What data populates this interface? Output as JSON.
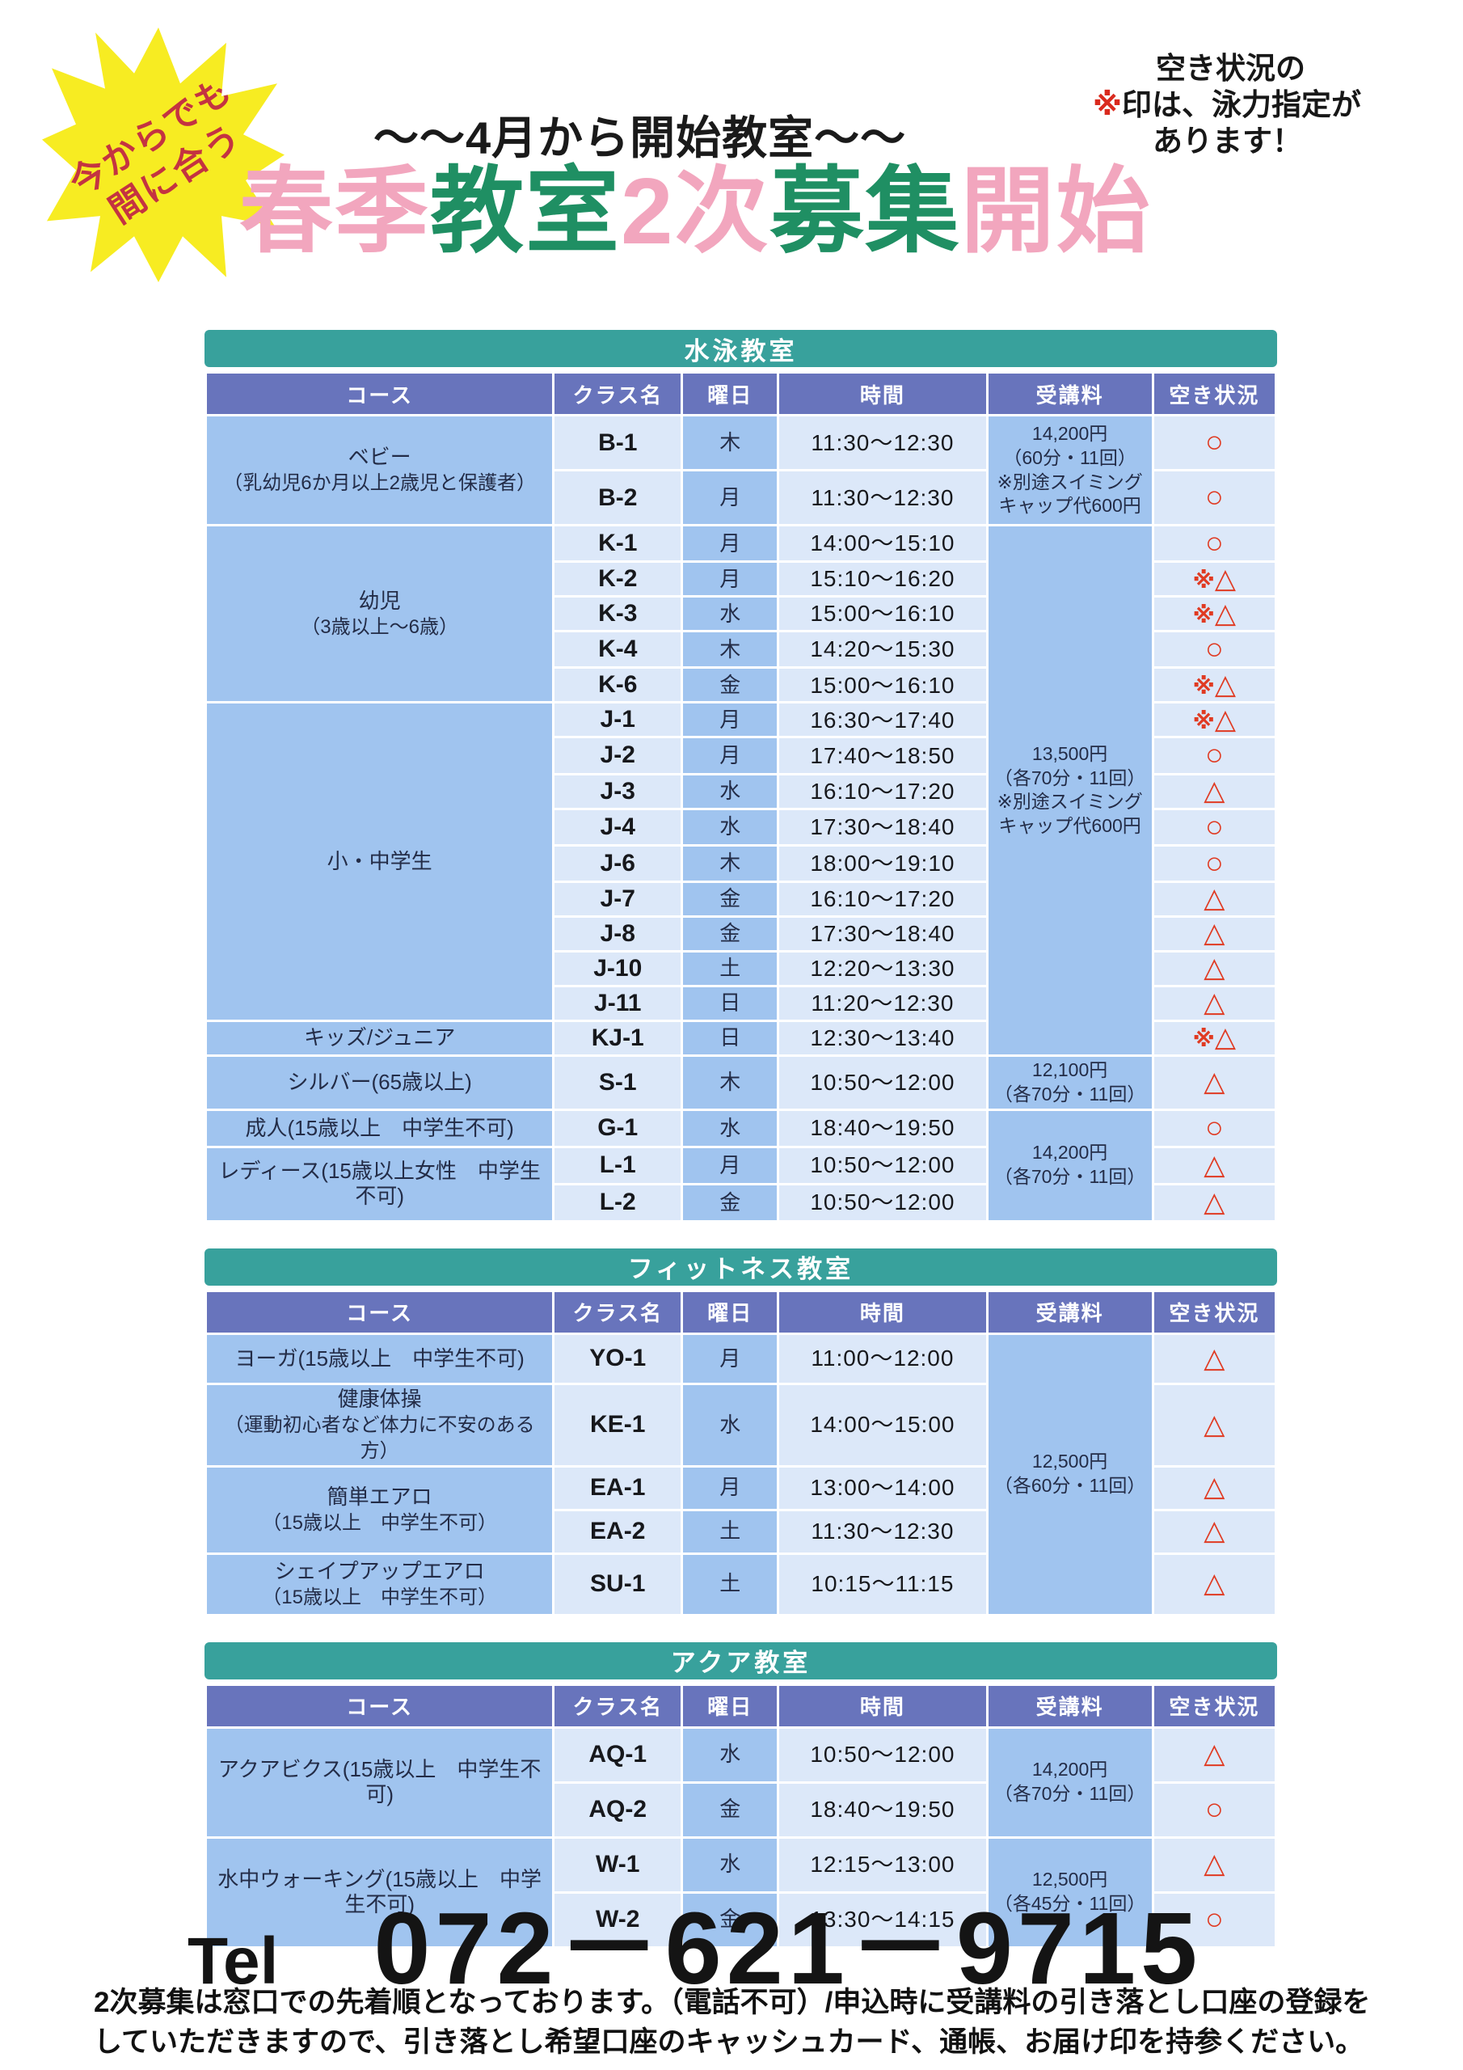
{
  "header": {
    "burst_line1": "今からでも",
    "burst_line2": "間に合う",
    "subtitle": "～～4月から開始教室～～",
    "title_segments": [
      {
        "text": "春季",
        "color": "#f2a6be"
      },
      {
        "text": "教室",
        "color": "#1f8f63"
      },
      {
        "text": "2次",
        "color": "#f2a6be"
      },
      {
        "text": "募集",
        "color": "#1f8f63"
      },
      {
        "text": "開始",
        "color": "#f2a6be"
      }
    ],
    "note_line1": "空き状況の",
    "note_mark": "※",
    "note_line2": "印は、泳力指定が",
    "note_line3": "あります！"
  },
  "columns": [
    "コース",
    "クラス名",
    "曜日",
    "時間",
    "受講料",
    "空き状況"
  ],
  "tables": [
    {
      "name": "swim",
      "title": "水泳教室",
      "rows": [
        {
          "h": 68,
          "cells": [
            {
              "col": "course",
              "lines": [
                "ベビー",
                "（乳幼児6か月以上2歳児と保護者）"
              ],
              "rowspan": 2
            },
            {
              "col": "class",
              "text": "B-1"
            },
            {
              "col": "day",
              "text": "木"
            },
            {
              "col": "time",
              "text": "11:30～12:30"
            },
            {
              "col": "fee",
              "lines": [
                "14,200円",
                "（60分・11回）",
                "※別途スイミング",
                "キャップ代600円"
              ],
              "rowspan": 2
            },
            {
              "col": "status",
              "text": "○"
            }
          ]
        },
        {
          "h": 68,
          "cells": [
            {
              "col": "class",
              "text": "B-2"
            },
            {
              "col": "day",
              "text": "月"
            },
            {
              "col": "time",
              "text": "11:30～12:30"
            },
            {
              "col": "status",
              "text": "○"
            }
          ]
        },
        {
          "h": 42,
          "cells": [
            {
              "col": "course",
              "lines": [
                "幼児",
                "（3歳以上～6歳）"
              ],
              "rowspan": 5
            },
            {
              "col": "class",
              "text": "K-1"
            },
            {
              "col": "day",
              "text": "月"
            },
            {
              "col": "time",
              "text": "14:00～15:10"
            },
            {
              "col": "fee",
              "lines": [
                "13,500円",
                "（各70分・11回）",
                "※別途スイミング",
                "キャップ代600円"
              ],
              "rowspan": 15
            },
            {
              "col": "status",
              "text": "○"
            }
          ]
        },
        {
          "h": 42,
          "cells": [
            {
              "col": "class",
              "text": "K-2"
            },
            {
              "col": "day",
              "text": "月"
            },
            {
              "col": "time",
              "text": "15:10～16:20"
            },
            {
              "col": "status",
              "text": "※△"
            }
          ]
        },
        {
          "h": 42,
          "cells": [
            {
              "col": "class",
              "text": "K-3"
            },
            {
              "col": "day",
              "text": "水"
            },
            {
              "col": "time",
              "text": "15:00～16:10"
            },
            {
              "col": "status",
              "text": "※△"
            }
          ]
        },
        {
          "h": 42,
          "cells": [
            {
              "col": "class",
              "text": "K-4"
            },
            {
              "col": "day",
              "text": "木"
            },
            {
              "col": "time",
              "text": "14:20～15:30"
            },
            {
              "col": "status",
              "text": "○"
            }
          ]
        },
        {
          "h": 42,
          "cells": [
            {
              "col": "class",
              "text": "K-6"
            },
            {
              "col": "day",
              "text": "金"
            },
            {
              "col": "time",
              "text": "15:00～16:10"
            },
            {
              "col": "status",
              "text": "※△"
            }
          ]
        },
        {
          "h": 42,
          "cells": [
            {
              "col": "course",
              "lines": [
                "小・中学生"
              ],
              "rowspan": 9
            },
            {
              "col": "class",
              "text": "J-1"
            },
            {
              "col": "day",
              "text": "月"
            },
            {
              "col": "time",
              "text": "16:30～17:40"
            },
            {
              "col": "status",
              "text": "※△"
            }
          ]
        },
        {
          "h": 42,
          "cells": [
            {
              "col": "class",
              "text": "J-2"
            },
            {
              "col": "day",
              "text": "月"
            },
            {
              "col": "time",
              "text": "17:40～18:50"
            },
            {
              "col": "status",
              "text": "○"
            }
          ]
        },
        {
          "h": 42,
          "cells": [
            {
              "col": "class",
              "text": "J-3"
            },
            {
              "col": "day",
              "text": "水"
            },
            {
              "col": "time",
              "text": "16:10～17:20"
            },
            {
              "col": "status",
              "text": "△"
            }
          ]
        },
        {
          "h": 42,
          "cells": [
            {
              "col": "class",
              "text": "J-4"
            },
            {
              "col": "day",
              "text": "水"
            },
            {
              "col": "time",
              "text": "17:30～18:40"
            },
            {
              "col": "status",
              "text": "○"
            }
          ]
        },
        {
          "h": 42,
          "cells": [
            {
              "col": "class",
              "text": "J-6"
            },
            {
              "col": "day",
              "text": "木"
            },
            {
              "col": "time",
              "text": "18:00～19:10"
            },
            {
              "col": "status",
              "text": "○"
            }
          ]
        },
        {
          "h": 42,
          "cells": [
            {
              "col": "class",
              "text": "J-7"
            },
            {
              "col": "day",
              "text": "金"
            },
            {
              "col": "time",
              "text": "16:10～17:20"
            },
            {
              "col": "status",
              "text": "△"
            }
          ]
        },
        {
          "h": 42,
          "cells": [
            {
              "col": "class",
              "text": "J-8"
            },
            {
              "col": "day",
              "text": "金"
            },
            {
              "col": "time",
              "text": "17:30～18:40"
            },
            {
              "col": "status",
              "text": "△"
            }
          ]
        },
        {
          "h": 42,
          "cells": [
            {
              "col": "class",
              "text": "J-10"
            },
            {
              "col": "day",
              "text": "土"
            },
            {
              "col": "time",
              "text": "12:20～13:30"
            },
            {
              "col": "status",
              "text": "△"
            }
          ]
        },
        {
          "h": 42,
          "cells": [
            {
              "col": "class",
              "text": "J-11"
            },
            {
              "col": "day",
              "text": "日"
            },
            {
              "col": "time",
              "text": "11:20～12:30"
            },
            {
              "col": "status",
              "text": "△"
            }
          ]
        },
        {
          "h": 42,
          "cells": [
            {
              "col": "course",
              "lines": [
                "キッズ/ジュニア"
              ]
            },
            {
              "col": "class",
              "text": "KJ-1"
            },
            {
              "col": "day",
              "text": "日"
            },
            {
              "col": "time",
              "text": "12:30～13:40"
            },
            {
              "col": "status",
              "text": "※△"
            }
          ]
        },
        {
          "h": 54,
          "cells": [
            {
              "col": "course",
              "lines": [
                "シルバー(65歳以上)"
              ]
            },
            {
              "col": "class",
              "text": "S-1"
            },
            {
              "col": "day",
              "text": "木"
            },
            {
              "col": "time",
              "text": "10:50～12:00"
            },
            {
              "col": "fee",
              "lines": [
                "12,100円",
                "（各70分・11回）"
              ]
            },
            {
              "col": "status",
              "text": "△"
            }
          ]
        },
        {
          "h": 46,
          "cells": [
            {
              "col": "course",
              "lines": [
                "成人(15歳以上　中学生不可)"
              ]
            },
            {
              "col": "class",
              "text": "G-1"
            },
            {
              "col": "day",
              "text": "水"
            },
            {
              "col": "time",
              "text": "18:40～19:50"
            },
            {
              "col": "fee",
              "lines": [
                "14,200円",
                "（各70分・11回）"
              ],
              "rowspan": 3
            },
            {
              "col": "status",
              "text": "○"
            }
          ]
        },
        {
          "h": 46,
          "cells": [
            {
              "col": "course",
              "lines": [
                "レディース(15歳以上女性　中学生不可)"
              ],
              "rowspan": 2
            },
            {
              "col": "class",
              "text": "L-1"
            },
            {
              "col": "day",
              "text": "月"
            },
            {
              "col": "time",
              "text": "10:50～12:00"
            },
            {
              "col": "status",
              "text": "△"
            }
          ]
        },
        {
          "h": 46,
          "cells": [
            {
              "col": "class",
              "text": "L-2"
            },
            {
              "col": "day",
              "text": "金"
            },
            {
              "col": "time",
              "text": "10:50～12:00"
            },
            {
              "col": "status",
              "text": "△"
            }
          ]
        }
      ]
    },
    {
      "name": "fitness",
      "title": "フィットネス教室",
      "rows": [
        {
          "h": 62,
          "cells": [
            {
              "col": "course",
              "lines": [
                "ヨーガ(15歳以上　中学生不可)"
              ]
            },
            {
              "col": "class",
              "text": "YO-1"
            },
            {
              "col": "day",
              "text": "月"
            },
            {
              "col": "time",
              "text": "11:00～12:00"
            },
            {
              "col": "fee",
              "lines": [
                "12,500円",
                "（各60分・11回）"
              ],
              "rowspan": 5
            },
            {
              "col": "status",
              "text": "△"
            }
          ]
        },
        {
          "h": 76,
          "cells": [
            {
              "col": "course",
              "lines": [
                "健康体操",
                "（運動初心者など体力に不安のある方）"
              ]
            },
            {
              "col": "class",
              "text": "KE-1"
            },
            {
              "col": "day",
              "text": "水"
            },
            {
              "col": "time",
              "text": "14:00～15:00"
            },
            {
              "col": "status",
              "text": "△"
            }
          ]
        },
        {
          "h": 54,
          "cells": [
            {
              "col": "course",
              "lines": [
                "簡単エアロ",
                "（15歳以上　中学生不可）"
              ],
              "rowspan": 2
            },
            {
              "col": "class",
              "text": "EA-1"
            },
            {
              "col": "day",
              "text": "月"
            },
            {
              "col": "time",
              "text": "13:00～14:00"
            },
            {
              "col": "status",
              "text": "△"
            }
          ]
        },
        {
          "h": 54,
          "cells": [
            {
              "col": "class",
              "text": "EA-2"
            },
            {
              "col": "day",
              "text": "土"
            },
            {
              "col": "time",
              "text": "11:30～12:30"
            },
            {
              "col": "status",
              "text": "△"
            }
          ]
        },
        {
          "h": 76,
          "cells": [
            {
              "col": "course",
              "lines": [
                "シェイプアップエアロ",
                "（15歳以上　中学生不可）"
              ]
            },
            {
              "col": "class",
              "text": "SU-1"
            },
            {
              "col": "day",
              "text": "土"
            },
            {
              "col": "time",
              "text": "10:15～11:15"
            },
            {
              "col": "status",
              "text": "△"
            }
          ]
        }
      ]
    },
    {
      "name": "aqua",
      "title": "アクア教室",
      "rows": [
        {
          "h": 68,
          "cells": [
            {
              "col": "course",
              "lines": [
                "アクアビクス(15歳以上　中学生不可)"
              ],
              "rowspan": 2
            },
            {
              "col": "class",
              "text": "AQ-1"
            },
            {
              "col": "day",
              "text": "水"
            },
            {
              "col": "time",
              "text": "10:50～12:00"
            },
            {
              "col": "fee",
              "lines": [
                "14,200円",
                "（各70分・11回）"
              ],
              "rowspan": 2
            },
            {
              "col": "status",
              "text": "△"
            }
          ]
        },
        {
          "h": 68,
          "cells": [
            {
              "col": "class",
              "text": "AQ-2"
            },
            {
              "col": "day",
              "text": "金"
            },
            {
              "col": "time",
              "text": "18:40～19:50"
            },
            {
              "col": "status",
              "text": "○"
            }
          ]
        },
        {
          "h": 68,
          "cells": [
            {
              "col": "course",
              "lines": [
                "水中ウォーキング(15歳以上　中学生不可)"
              ],
              "rowspan": 2
            },
            {
              "col": "class",
              "text": "W-1"
            },
            {
              "col": "day",
              "text": "水"
            },
            {
              "col": "time",
              "text": "12:15～13:00"
            },
            {
              "col": "fee",
              "lines": [
                "12,500円",
                "（各45分・11回）"
              ],
              "rowspan": 2
            },
            {
              "col": "status",
              "text": "△"
            }
          ]
        },
        {
          "h": 68,
          "cells": [
            {
              "col": "class",
              "text": "W-2"
            },
            {
              "col": "day",
              "text": "金"
            },
            {
              "col": "time",
              "text": "13:30～14:15"
            },
            {
              "col": "status",
              "text": "○"
            }
          ]
        }
      ]
    }
  ],
  "contact": {
    "tel_label": "Tel",
    "tel_number": "072－621－9715",
    "footer_line1": "2次募集は窓口での先着順となっております。（電話不可）/申込時に受講料の引き落とし口座の登録を",
    "footer_line2": "していただきますので、引き落とし希望口座のキャッシュカード、通帳、お届け印を持参ください。"
  }
}
